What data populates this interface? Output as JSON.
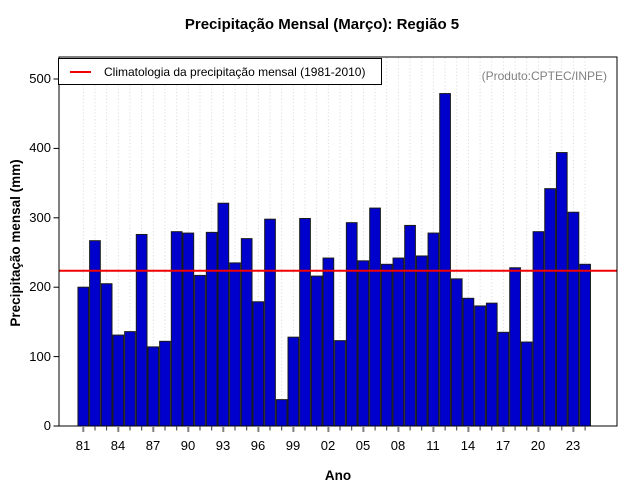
{
  "title": "Precipitação Mensal (Março): Região 5",
  "credit": "(Produto:CPTEC/INPE)",
  "legend": {
    "label": "Climatologia da precipitação mensal (1981-2010)"
  },
  "axes": {
    "xlabel": "Ano",
    "ylabel": "Precipitação mensal (mm)"
  },
  "chart_data": {
    "type": "bar",
    "title": "Precipitação Mensal (Março): Região 5",
    "xlabel": "Ano",
    "ylabel": "Precipitação mensal (mm)",
    "categories": [
      "81",
      "82",
      "83",
      "84",
      "85",
      "86",
      "87",
      "88",
      "89",
      "90",
      "91",
      "92",
      "93",
      "94",
      "95",
      "96",
      "97",
      "98",
      "99",
      "00",
      "01",
      "02",
      "03",
      "04",
      "05",
      "06",
      "07",
      "08",
      "09",
      "10",
      "11",
      "12",
      "13",
      "14",
      "15",
      "16",
      "17",
      "18",
      "19",
      "20",
      "21",
      "22",
      "23",
      "24"
    ],
    "values": [
      200,
      267,
      205,
      131,
      136,
      276,
      114,
      122,
      280,
      278,
      217,
      279,
      321,
      235,
      270,
      179,
      298,
      38,
      128,
      299,
      216,
      242,
      123,
      293,
      238,
      314,
      233,
      242,
      289,
      245,
      278,
      479,
      212,
      184,
      173,
      177,
      135,
      228,
      121,
      280,
      342,
      394,
      308,
      233
    ],
    "labeled_ticks": [
      "81",
      "84",
      "87",
      "90",
      "93",
      "96",
      "99",
      "02",
      "05",
      "08",
      "11",
      "14",
      "17",
      "20",
      "23"
    ],
    "yticks": [
      0,
      100,
      200,
      300,
      400,
      500
    ],
    "ylim": [
      0,
      500
    ],
    "climatology_mean": 223.6,
    "legend_label": "Climatologia da precipitação mensal (1981-2010)",
    "annotation": "(Produto:CPTEC/INPE)",
    "bar_color": "#0000cd",
    "bar_border_color": "#1a1a1a",
    "line_color": "#f00000",
    "grid": "vertical-dotted-per-year",
    "legend_position": "top-left"
  }
}
